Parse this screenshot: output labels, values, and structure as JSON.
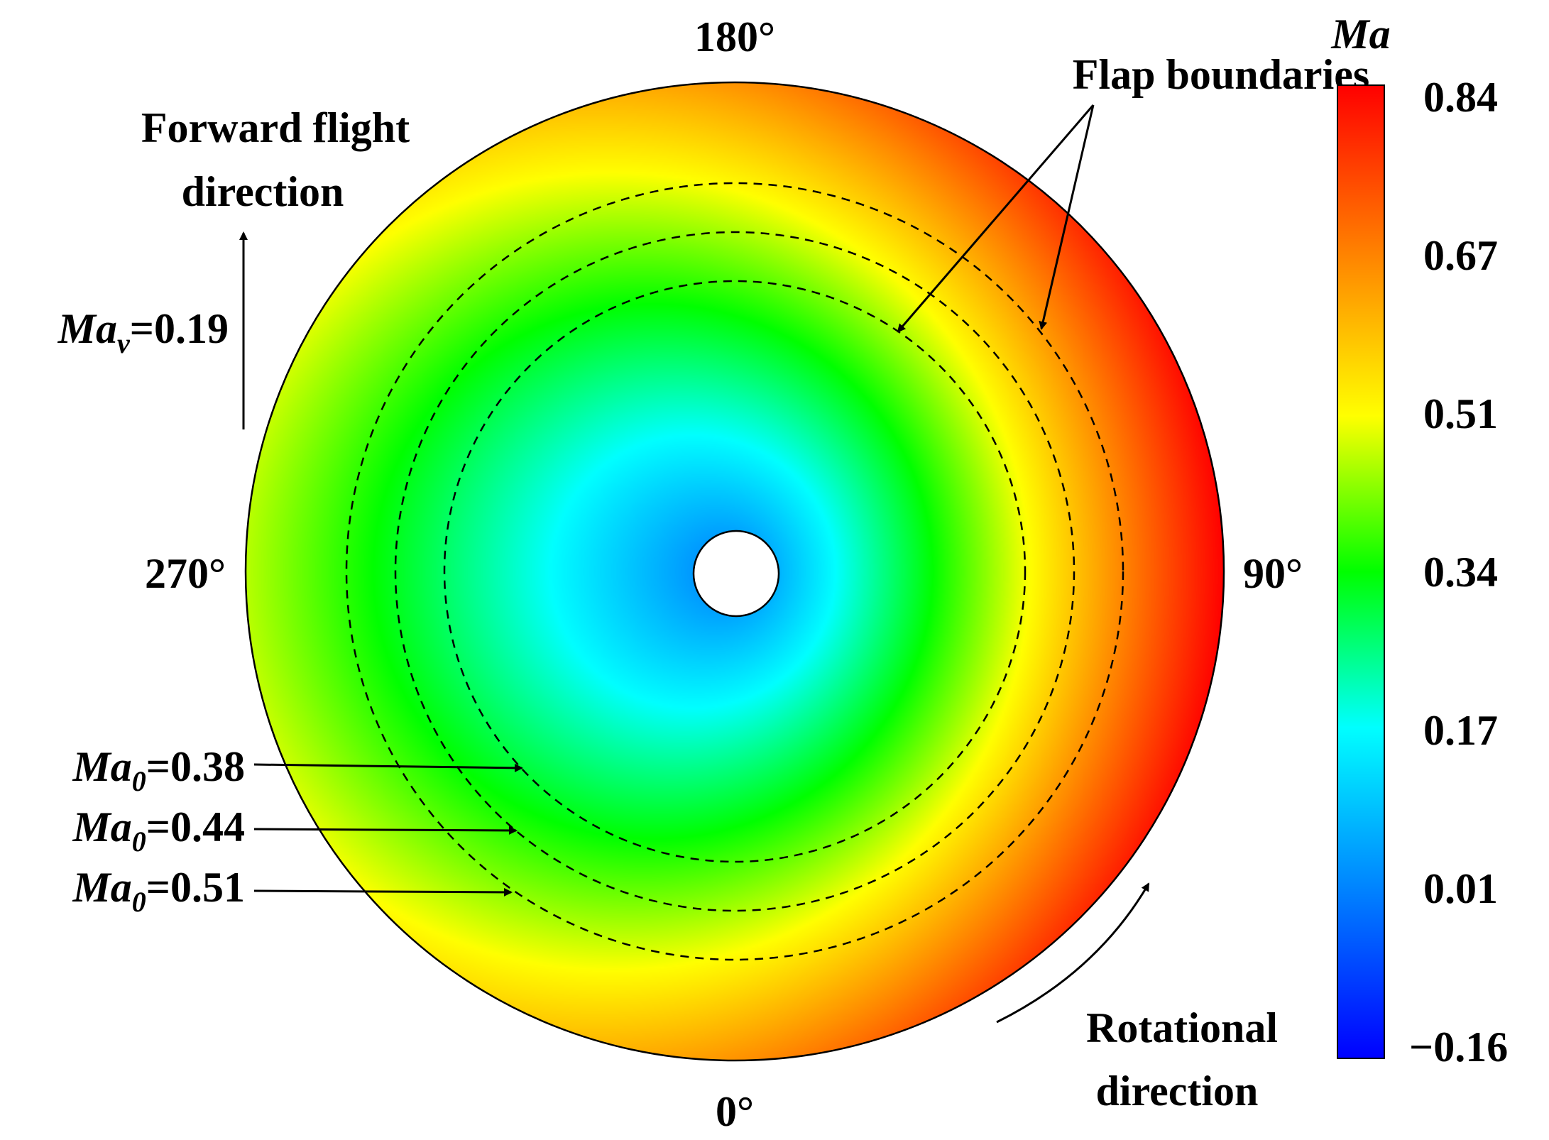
{
  "angle_labels": {
    "top": "180°",
    "right": "90°",
    "bottom": "0°",
    "left": "270°"
  },
  "forward_flight": {
    "line1": "Forward flight",
    "line2": "direction",
    "mach_symbol": "Ma",
    "mach_subscript": "v",
    "mach_value": "=0.19"
  },
  "rotational": {
    "line1": "Rotational",
    "line2": "direction"
  },
  "flap_boundaries_label": "Flap boundaries",
  "boundaries": [
    {
      "symbol": "Ma",
      "subscript": "0",
      "value": "=0.38"
    },
    {
      "symbol": "Ma",
      "subscript": "0",
      "value": "=0.44"
    },
    {
      "symbol": "Ma",
      "subscript": "0",
      "value": "=0.51"
    }
  ],
  "colorbar": {
    "title": "Ma",
    "ticks": [
      "0.84",
      "0.67",
      "0.51",
      "0.34",
      "0.17",
      "0.01",
      "−0.16"
    ],
    "min": -0.16,
    "max": 0.84
  },
  "colors": {
    "colormap": [
      "#0000ff",
      "#0080ff",
      "#00ffff",
      "#00ff00",
      "#ffff00",
      "#ff8000",
      "#ff0000"
    ]
  }
}
